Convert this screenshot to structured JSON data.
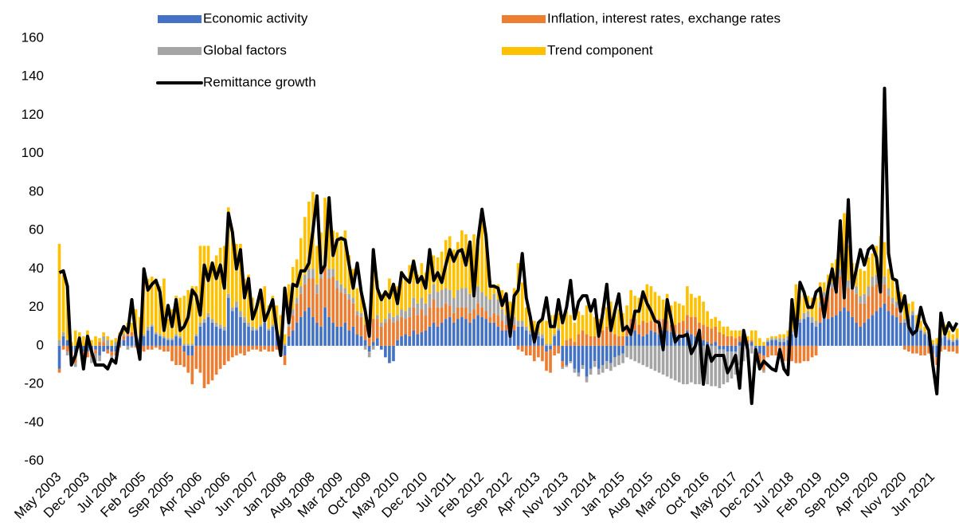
{
  "chart_data": {
    "type": "bar",
    "categories": [
      "May 2003",
      null,
      null,
      null,
      null,
      null,
      null,
      "Dec 2003",
      null,
      null,
      null,
      null,
      null,
      null,
      "Jul 2004",
      null,
      null,
      null,
      null,
      null,
      null,
      "Feb 2005",
      null,
      null,
      null,
      null,
      null,
      null,
      "Sep 2005",
      null,
      null,
      null,
      null,
      null,
      null,
      "Apr 2006",
      null,
      null,
      null,
      null,
      null,
      null,
      "Nov 2006",
      null,
      null,
      null,
      null,
      null,
      null,
      "Jun 2007",
      null,
      null,
      null,
      null,
      null,
      null,
      "Jan 2008",
      null,
      null,
      null,
      null,
      null,
      null,
      "Aug 2008",
      null,
      null,
      null,
      null,
      null,
      null,
      "Mar 2009",
      null,
      null,
      null,
      null,
      null,
      null,
      "Oct 2009",
      null,
      null,
      null,
      null,
      null,
      null,
      "May 2010",
      null,
      null,
      null,
      null,
      null,
      null,
      "Dec 2010",
      null,
      null,
      null,
      null,
      null,
      null,
      "Jul 2011",
      null,
      null,
      null,
      null,
      null,
      null,
      "Feb 2012",
      null,
      null,
      null,
      null,
      null,
      null,
      "Sep 2012",
      null,
      null,
      null,
      null,
      null,
      null,
      "Apr 2013",
      null,
      null,
      null,
      null,
      null,
      null,
      "Nov 2013",
      null,
      null,
      null,
      null,
      null,
      null,
      "Jun 2014",
      null,
      null,
      null,
      null,
      null,
      null,
      "Jan 2015",
      null,
      null,
      null,
      null,
      null,
      null,
      "Aug 2015",
      null,
      null,
      null,
      null,
      null,
      null,
      "Mar 2016",
      null,
      null,
      null,
      null,
      null,
      null,
      "Oct 2016",
      null,
      null,
      null,
      null,
      null,
      null,
      "May 2017",
      null,
      null,
      null,
      null,
      null,
      null,
      "Dec 2017",
      null,
      null,
      null,
      null,
      null,
      null,
      "Jul 2018",
      null,
      null,
      null,
      null,
      null,
      null,
      "Feb 2019",
      null,
      null,
      null,
      null,
      null,
      null,
      "Sep 2019",
      null,
      null,
      null,
      null,
      null,
      null,
      "Apr 2020",
      null,
      null,
      null,
      null,
      null,
      null,
      "Nov 2020",
      null,
      null,
      null,
      null,
      null,
      null,
      "Jun 2021",
      null,
      null,
      null,
      null,
      null,
      null
    ],
    "series": [
      {
        "name": "Economic activity",
        "color": "#4472c4",
        "values": [
          -12,
          5,
          3,
          -3,
          -5,
          2,
          -3,
          -3,
          -4,
          -2,
          -5,
          -3,
          -2,
          -3,
          -3,
          2,
          3,
          5,
          5,
          3,
          4,
          5,
          8,
          10,
          6,
          5,
          4,
          3,
          3,
          5,
          4,
          -3,
          -5,
          -5,
          5,
          10,
          12,
          15,
          12,
          10,
          9,
          8,
          25,
          18,
          20,
          15,
          12,
          10,
          8,
          8,
          10,
          12,
          8,
          10,
          8,
          5,
          -5,
          5,
          8,
          12,
          15,
          18,
          20,
          15,
          12,
          10,
          20,
          15,
          12,
          10,
          10,
          12,
          8,
          10,
          6,
          5,
          3,
          -3,
          2,
          4,
          -2,
          -6,
          -9,
          -8,
          3,
          5,
          6,
          5,
          8,
          6,
          7,
          8,
          10,
          12,
          10,
          12,
          14,
          15,
          12,
          14,
          15,
          14,
          12,
          14,
          16,
          15,
          14,
          12,
          12,
          10,
          8,
          8,
          5,
          8,
          10,
          10,
          8,
          6,
          5,
          5,
          4,
          -3,
          -2,
          5,
          8,
          -8,
          -10,
          -8,
          -12,
          -14,
          -10,
          -16,
          -12,
          -8,
          -12,
          -10,
          -8,
          -9,
          -6,
          -5,
          -4,
          5,
          6,
          8,
          6,
          5,
          6,
          8,
          7,
          6,
          8,
          8,
          7,
          6,
          6,
          5,
          8,
          6,
          5,
          4,
          3,
          2,
          1,
          2,
          -2,
          -2,
          -3,
          -3,
          -3,
          2,
          3,
          1,
          2,
          -3,
          -4,
          -5,
          2,
          3,
          3,
          2,
          2,
          3,
          6,
          10,
          12,
          14,
          15,
          12,
          10,
          12,
          15,
          14,
          15,
          16,
          18,
          20,
          18,
          15,
          12,
          10,
          12,
          14,
          16,
          18,
          20,
          22,
          18,
          16,
          15,
          12,
          12,
          14,
          16,
          10,
          8,
          6,
          5,
          -4,
          -6,
          4,
          5,
          3,
          2,
          3
        ]
      },
      {
        "name": "Inflation, interest rates, exchange rates",
        "color": "#ed7d31",
        "values": [
          -2,
          -2,
          -3,
          -5,
          -4,
          2,
          -3,
          -3,
          -2,
          -2,
          2,
          2,
          -2,
          -2,
          -2,
          -1,
          2,
          3,
          2,
          -1,
          -2,
          -3,
          -2,
          -2,
          -1,
          -2,
          -3,
          -3,
          -8,
          -10,
          -10,
          -8,
          -9,
          -15,
          -12,
          -14,
          -22,
          -20,
          -18,
          -15,
          -12,
          -10,
          -8,
          -6,
          -5,
          -4,
          -5,
          -3,
          -2,
          -2,
          -3,
          -2,
          -3,
          -3,
          -2,
          -4,
          -5,
          5,
          8,
          10,
          12,
          14,
          15,
          20,
          15,
          25,
          22,
          20,
          24,
          20,
          18,
          15,
          16,
          12,
          10,
          10,
          8,
          8,
          12,
          10,
          10,
          12,
          14,
          12,
          10,
          10,
          8,
          10,
          12,
          10,
          12,
          8,
          10,
          12,
          10,
          8,
          8,
          6,
          5,
          6,
          5,
          6,
          5,
          5,
          6,
          5,
          4,
          3,
          5,
          6,
          5,
          3,
          2,
          3,
          -2,
          -3,
          -5,
          -5,
          -8,
          -6,
          -8,
          -10,
          -12,
          -5,
          -4,
          -3,
          3,
          4,
          2,
          6,
          8,
          6,
          5,
          5,
          6,
          8,
          10,
          8,
          6,
          5,
          5,
          6,
          8,
          6,
          5,
          8,
          6,
          5,
          6,
          8,
          6,
          5,
          4,
          5,
          6,
          8,
          8,
          9,
          10,
          8,
          8,
          8,
          8,
          8,
          7,
          6,
          5,
          5,
          4,
          3,
          3,
          2,
          1,
          -2,
          -5,
          -8,
          -6,
          -5,
          -5,
          -6,
          -8,
          -8,
          -8,
          -9,
          -9,
          -8,
          -8,
          -6,
          -5,
          8,
          10,
          12,
          15,
          14,
          18,
          20,
          12,
          14,
          15,
          12,
          10,
          12,
          15,
          14,
          12,
          10,
          8,
          6,
          5,
          4,
          -2,
          -3,
          -4,
          -4,
          -5,
          -5,
          -4,
          -5,
          -4,
          -3,
          -2,
          -3,
          -3,
          -4
        ]
      },
      {
        "name": "Global factors",
        "color": "#a5a5a5",
        "values": [
          3,
          2,
          -2,
          -2,
          -2,
          1,
          -2,
          3,
          -3,
          -4,
          -3,
          3,
          3,
          -2,
          2,
          2,
          1,
          -2,
          -1,
          1,
          1,
          1,
          2,
          1,
          1,
          1,
          1,
          1,
          1,
          1,
          1,
          1,
          1,
          1,
          1,
          2,
          2,
          2,
          2,
          2,
          2,
          2,
          2,
          2,
          3,
          3,
          3,
          2,
          2,
          1,
          1,
          1,
          1,
          1,
          1,
          1,
          1,
          2,
          3,
          3,
          4,
          5,
          5,
          5,
          5,
          6,
          5,
          5,
          4,
          4,
          4,
          3,
          3,
          3,
          2,
          2,
          -2,
          -3,
          -2,
          2,
          2,
          2,
          3,
          3,
          3,
          4,
          4,
          5,
          5,
          6,
          6,
          6,
          7,
          8,
          8,
          9,
          8,
          8,
          8,
          9,
          10,
          10,
          10,
          9,
          9,
          8,
          8,
          9,
          10,
          8,
          6,
          5,
          4,
          4,
          3,
          3,
          2,
          2,
          2,
          2,
          2,
          1,
          1,
          1,
          1,
          -1,
          -1,
          -1,
          -2,
          -2,
          -2,
          -3,
          -3,
          -3,
          -3,
          -4,
          -4,
          -4,
          -5,
          -5,
          -5,
          -6,
          -7,
          -8,
          -9,
          -10,
          -11,
          -12,
          -13,
          -14,
          -15,
          -16,
          -17,
          -18,
          -19,
          -20,
          -20,
          -19,
          -20,
          -20,
          -19,
          -20,
          -21,
          -21,
          -20,
          -18,
          -16,
          -14,
          -12,
          -10,
          -8,
          -6,
          -4,
          -2,
          -1,
          -1,
          1,
          1,
          1,
          2,
          2,
          2,
          2,
          2,
          2,
          3,
          3,
          3,
          3,
          3,
          3,
          3,
          3,
          3,
          4,
          4,
          4,
          4,
          4,
          4,
          5,
          5,
          5,
          5,
          5,
          4,
          4,
          3,
          3,
          2,
          2,
          2,
          2,
          1,
          1,
          1,
          1,
          1,
          1,
          1,
          1,
          1,
          1,
          1
        ]
      },
      {
        "name": "Trend component",
        "color": "#ffc000",
        "values": [
          50,
          30,
          25,
          2,
          8,
          2,
          5,
          5,
          3,
          5,
          2,
          2,
          2,
          3,
          2,
          3,
          2,
          4,
          5,
          15,
          10,
          30,
          25,
          25,
          28,
          25,
          30,
          10,
          15,
          20,
          20,
          25,
          28,
          30,
          25,
          40,
          38,
          35,
          30,
          35,
          40,
          42,
          45,
          40,
          30,
          35,
          20,
          25,
          15,
          12,
          15,
          18,
          12,
          15,
          12,
          10,
          5,
          20,
          22,
          20,
          25,
          30,
          35,
          40,
          20,
          18,
          30,
          25,
          20,
          25,
          25,
          30,
          20,
          15,
          12,
          10,
          8,
          5,
          35,
          18,
          15,
          15,
          18,
          15,
          15,
          20,
          18,
          22,
          20,
          15,
          18,
          16,
          22,
          15,
          18,
          20,
          25,
          28,
          25,
          25,
          30,
          28,
          25,
          30,
          20,
          40,
          30,
          10,
          5,
          8,
          10,
          12,
          12,
          15,
          30,
          20,
          10,
          8,
          6,
          5,
          8,
          12,
          15,
          10,
          8,
          15,
          15,
          12,
          10,
          12,
          8,
          15,
          12,
          10,
          8,
          12,
          10,
          15,
          12,
          14,
          12,
          10,
          15,
          12,
          14,
          16,
          20,
          18,
          15,
          12,
          10,
          14,
          10,
          12,
          10,
          8,
          15,
          12,
          10,
          14,
          12,
          8,
          5,
          5,
          6,
          4,
          5,
          3,
          4,
          3,
          2,
          2,
          5,
          8,
          4,
          2,
          1,
          1,
          1,
          2,
          2,
          3,
          15,
          20,
          12,
          10,
          8,
          10,
          12,
          10,
          5,
          8,
          10,
          12,
          15,
          25,
          18,
          10,
          12,
          14,
          12,
          15,
          12,
          15,
          20,
          18,
          10,
          12,
          8,
          10,
          8,
          6,
          5,
          5,
          4,
          3,
          2,
          2,
          3,
          10,
          5,
          4,
          3,
          5
        ]
      },
      {
        "name": "Remittance growth",
        "color": "#000000",
        "type": "line",
        "values": [
          38,
          39,
          31,
          -10,
          -5,
          4,
          -12,
          5,
          -3,
          -10,
          -10,
          -10,
          -12,
          -7,
          -9,
          5,
          10,
          7,
          24,
          5,
          -7,
          40,
          29,
          32,
          34,
          28,
          8,
          21,
          10,
          24,
          8,
          10,
          15,
          29,
          26,
          16,
          42,
          34,
          43,
          35,
          42,
          30,
          69,
          59,
          40,
          50,
          25,
          35,
          14,
          20,
          29,
          13,
          18,
          24,
          8,
          -5,
          30,
          12,
          32,
          31,
          39,
          39,
          43,
          60,
          78,
          38,
          42,
          77,
          47,
          55,
          56,
          55,
          42,
          30,
          43,
          28,
          18,
          5,
          50,
          30,
          24,
          28,
          25,
          32,
          22,
          38,
          35,
          33,
          44,
          33,
          36,
          30,
          50,
          34,
          38,
          33,
          42,
          50,
          44,
          49,
          50,
          42,
          54,
          26,
          55,
          71,
          57,
          31,
          31,
          30,
          21,
          27,
          5,
          26,
          29,
          48,
          25,
          15,
          2,
          12,
          14,
          25,
          10,
          10,
          24,
          12,
          20,
          34,
          14,
          23,
          26,
          26,
          18,
          24,
          5,
          17,
          32,
          8,
          18,
          27,
          8,
          10,
          6,
          18,
          18,
          28,
          22,
          18,
          13,
          12,
          -2,
          24,
          14,
          2,
          5,
          5,
          6,
          -4,
          0,
          8,
          -20,
          0,
          -8,
          -5,
          -5,
          -5,
          -14,
          -10,
          -5,
          -22,
          8,
          -2,
          -30,
          -2,
          -12,
          -8,
          -10,
          -12,
          -13,
          -2,
          -12,
          -15,
          24,
          5,
          33,
          28,
          20,
          20,
          28,
          30,
          15,
          30,
          40,
          28,
          65,
          25,
          76,
          30,
          40,
          50,
          42,
          50,
          52,
          46,
          28,
          134,
          48,
          35,
          34,
          18,
          26,
          10,
          6,
          8,
          20,
          12,
          8,
          -10,
          -25,
          17,
          6,
          12,
          8,
          12
        ]
      }
    ],
    "ylim": [
      -60,
      160
    ],
    "yticks": [
      -60,
      -40,
      -20,
      0,
      20,
      40,
      60,
      80,
      100,
      120,
      140,
      160
    ],
    "grid": false
  }
}
